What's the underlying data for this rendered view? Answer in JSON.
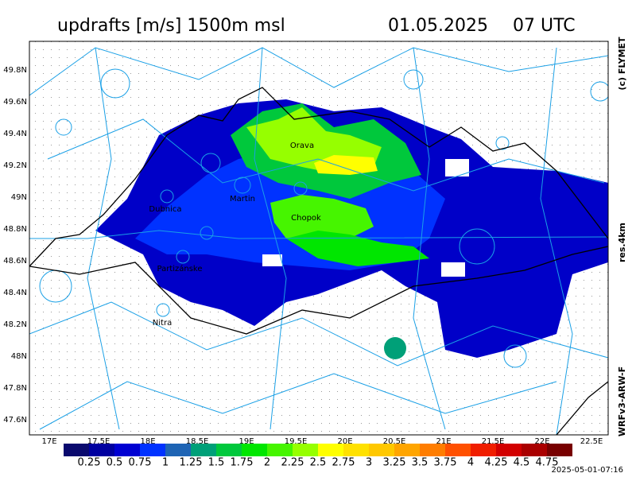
{
  "header": {
    "title": "updrafts [m/s] 1500m msl",
    "date": "01.05.2025",
    "time": "07 UTC"
  },
  "side": {
    "copyright": "(c) FLYMET",
    "resolution": "res.4km",
    "model": "WRFv3-ARW-F"
  },
  "footer": {
    "timestamp": "2025-05-01-07:16"
  },
  "map": {
    "lat_labels": [
      "49.8N",
      "49.6N",
      "49.4N",
      "49.2N",
      "49N",
      "48.8N",
      "48.6N",
      "48.4N",
      "48.2N",
      "48N",
      "47.8N",
      "47.6N"
    ],
    "lon_labels": [
      "17E",
      "17.5E",
      "18E",
      "18.5E",
      "19E",
      "19.5E",
      "20E",
      "20.5E",
      "21E",
      "21.5E",
      "22E",
      "22.5E"
    ],
    "places": [
      "Orava",
      "Martin",
      "Dubnica",
      "Chopok",
      "Partizánske",
      "Nitra"
    ]
  },
  "colorbar": {
    "colors": [
      "#0a0a6e",
      "#0000a0",
      "#0000d2",
      "#0032ff",
      "#1e64b4",
      "#00a078",
      "#00c83c",
      "#00e600",
      "#46f500",
      "#96ff00",
      "#ffff00",
      "#ffe100",
      "#ffc800",
      "#ffa500",
      "#ff7d00",
      "#ff5000",
      "#f01e00",
      "#d20000",
      "#aa0000",
      "#780000"
    ],
    "labels": [
      "0.25",
      "0.5",
      "0.75",
      "1",
      "1.25",
      "1.5",
      "1.75",
      "2",
      "2.25",
      "2.5",
      "2.75",
      "3",
      "3.25",
      "3.5",
      "3.75",
      "4",
      "4.25",
      "4.5",
      "4.75"
    ]
  }
}
